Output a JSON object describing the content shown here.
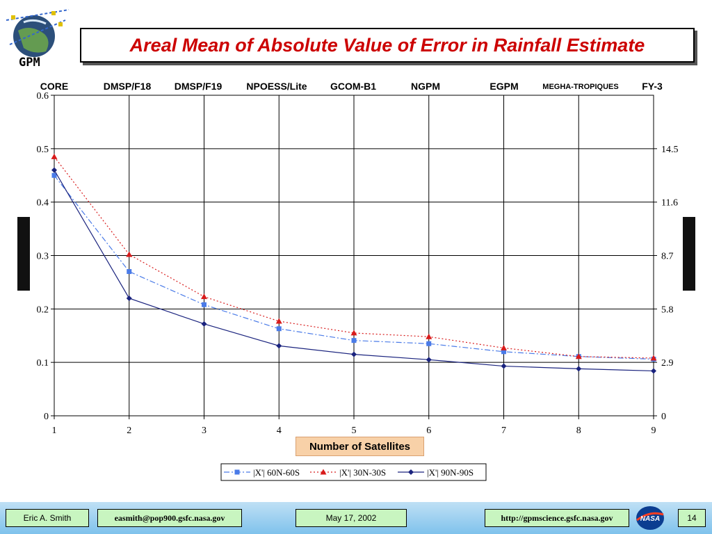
{
  "title": "Areal Mean of Absolute Value of Error in Rainfall Estimate",
  "logo_text": "GPM",
  "satellites": [
    {
      "label": "CORE",
      "small": false
    },
    {
      "label": "DMSP/F18",
      "small": false
    },
    {
      "label": "DMSP/F19",
      "small": false
    },
    {
      "label": "NPOESS/Lite",
      "small": false
    },
    {
      "label": "GCOM-B1",
      "small": false
    },
    {
      "label": "NGPM",
      "small": false
    },
    {
      "label": "EGPM",
      "small": false
    },
    {
      "label": "MEGHA-TROPIQUES",
      "small": true
    },
    {
      "label": "FY-3",
      "small": false
    }
  ],
  "chart_data": {
    "type": "line",
    "xlabel": "Number of Satellites",
    "ylabel": "",
    "x": [
      1,
      2,
      3,
      4,
      5,
      6,
      7,
      8,
      9
    ],
    "xlim": [
      1,
      9
    ],
    "ylim": [
      0,
      0.6
    ],
    "y_ticks": [
      "0",
      "0.1",
      "0.2",
      "0.3",
      "0.4",
      "0.5",
      "0.6"
    ],
    "y2_ticks": [
      "0",
      "2.9",
      "5.8",
      "8.7",
      "11.6",
      "14.5"
    ],
    "grid": true,
    "legend_position": "bottom",
    "series": [
      {
        "name": "|X'| 60N-60S",
        "color": "#4a7be8",
        "marker": "square",
        "dash": "dashdot",
        "values": [
          0.45,
          0.27,
          0.208,
          0.163,
          0.141,
          0.135,
          0.12,
          0.111,
          0.106
        ]
      },
      {
        "name": "|X'| 30N-30S",
        "color": "#d81b1b",
        "marker": "triangle",
        "dash": "dotted",
        "values": [
          0.485,
          0.302,
          0.223,
          0.177,
          0.155,
          0.148,
          0.127,
          0.111,
          0.108
        ]
      },
      {
        "name": "|X'| 90N-90S",
        "color": "#1a237e",
        "marker": "diamond",
        "dash": "solid",
        "values": [
          0.46,
          0.22,
          0.172,
          0.131,
          0.115,
          0.105,
          0.093,
          0.088,
          0.084
        ]
      }
    ]
  },
  "footer": {
    "author": "Eric A. Smith",
    "email": "easmith@pop900.gsfc.nasa.gov",
    "date": "May 17, 2002",
    "url": "http://gpmscience.gsfc.nasa.gov",
    "page": "14"
  },
  "colors": {
    "title": "#cc0000",
    "footer_box": "#c8f5c0",
    "xlabel_box": "#f8d1a8"
  }
}
